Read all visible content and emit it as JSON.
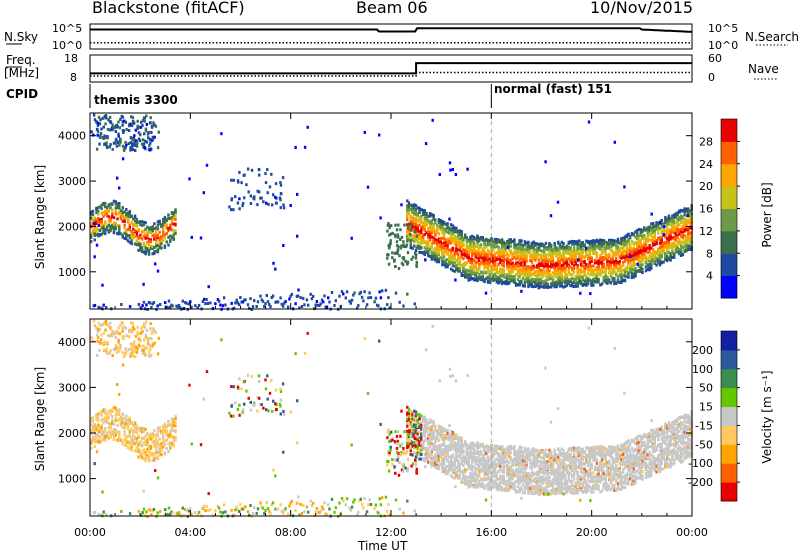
{
  "header": {
    "title": "Blackstone (fitACF)",
    "beam": "Beam 06",
    "date": "10/Nov/2015"
  },
  "labels": {
    "nsky": "N.Sky",
    "nsearch": "N.Search",
    "freq1": "Freq.",
    "freq2": "[MHz]",
    "nave": "Nave",
    "cpid": "CPID",
    "cpid_left": "themis 3300",
    "cpid_right": "normal (fast) 151",
    "nsky_ticks": [
      "10^5",
      "10^0"
    ],
    "nsearch_ticks": [
      "10^5",
      "10^0"
    ],
    "freq_ticks": [
      "18",
      "8"
    ],
    "nave_ticks": [
      "60",
      "0"
    ]
  },
  "colors": {
    "power": [
      "#0000ff",
      "#1d4aa0",
      "#3a6e4d",
      "#6c9a48",
      "#c7c21a",
      "#ffa500",
      "#ff6000",
      "#e80000"
    ],
    "velocity": [
      "#e80000",
      "#ff6000",
      "#ffa500",
      "#ffc860",
      "#c8c8c8",
      "#64c800",
      "#3a8e4d",
      "#2a5a9a",
      "#1020a0"
    ]
  },
  "chart_data": [
    {
      "type": "heatmap",
      "title": "Power",
      "xlabel": "",
      "ylabel": "Slant Range [km]",
      "x_ticks": [
        "00:00",
        "04:00",
        "08:00",
        "12:00",
        "16:00",
        "20:00",
        "00:00"
      ],
      "y_ticks": [
        "1000",
        "2000",
        "3000",
        "4000"
      ],
      "xlim": [
        0,
        24
      ],
      "ylim": [
        180,
        4500
      ],
      "colorbar_label": "Power [dB]",
      "colorbar_ticks": [
        "4",
        "8",
        "12",
        "16",
        "20",
        "24",
        "28"
      ],
      "colorbar_range": [
        0,
        32
      ]
    },
    {
      "type": "heatmap",
      "title": "Velocity",
      "xlabel": "Time UT",
      "ylabel": "Slant Range [km]",
      "x_ticks": [
        "00:00",
        "04:00",
        "08:00",
        "12:00",
        "16:00",
        "20:00",
        "00:00"
      ],
      "y_ticks": [
        "1000",
        "2000",
        "3000",
        "4000"
      ],
      "xlim": [
        0,
        24
      ],
      "ylim": [
        180,
        4500
      ],
      "colorbar_label": "Velocity [m s⁻¹]",
      "colorbar_ticks": [
        "-200",
        "-100",
        "-50",
        "-15",
        "15",
        "50",
        "100",
        "200"
      ],
      "colorbar_range": [
        -250,
        250
      ]
    }
  ],
  "hk": {
    "nsky_level": 0.78,
    "nsearch_level": 0.25,
    "freq_switch_hours": 13.0,
    "freq_levels_frac": [
      0.32,
      0.7
    ],
    "nave_levels_frac": [
      0.22,
      0.35
    ]
  }
}
